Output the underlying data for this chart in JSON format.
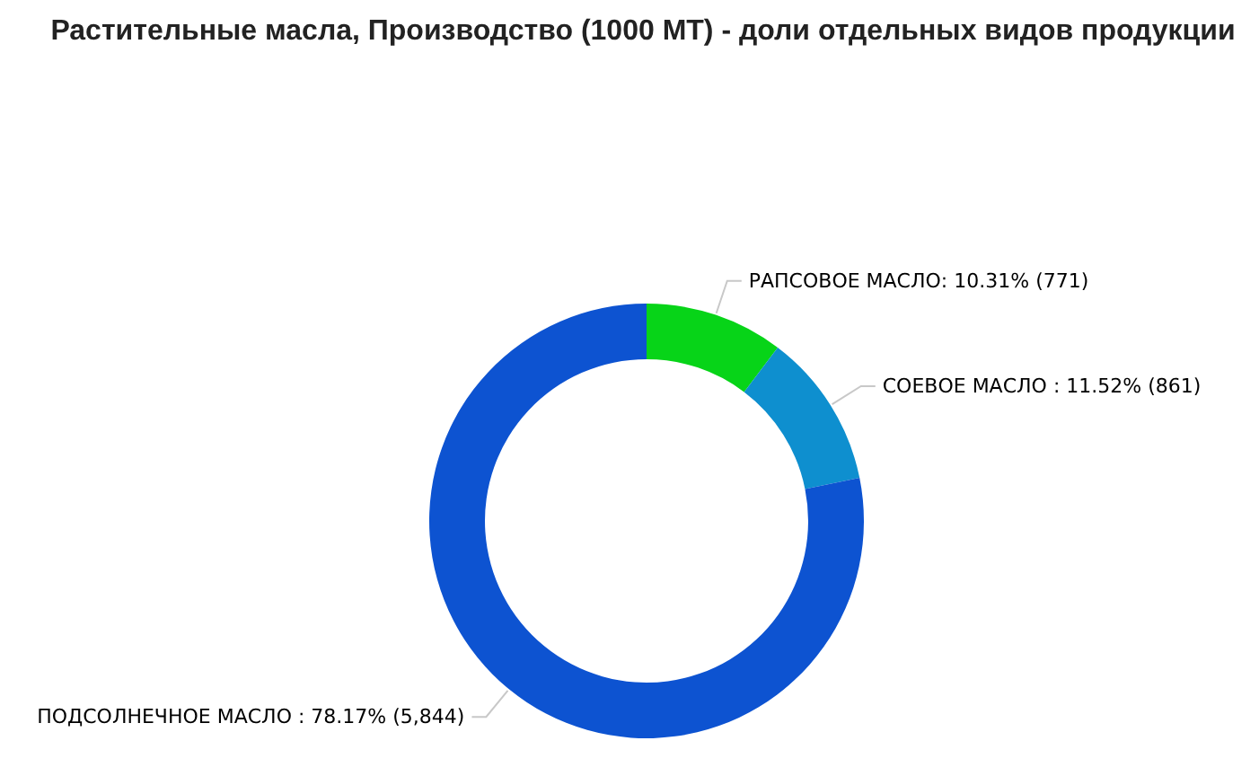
{
  "chart_data": {
    "type": "donut",
    "title": "Растительные масла, Производство (1000 МТ) - доли отдельных видов продукции",
    "categories": [
      "РАПСОВОЕ МАСЛО",
      "СОЕВОЕ МАСЛО ",
      "ПОДСОЛНЕЧНОЕ МАСЛО "
    ],
    "values": [
      771,
      861,
      5844
    ],
    "value_labels": [
      "10.31% (771)",
      "11.52% (861)",
      "78.17% (5,844)"
    ],
    "colors": [
      "#07d418",
      "#0e8fcf",
      "#0d53d1"
    ]
  }
}
